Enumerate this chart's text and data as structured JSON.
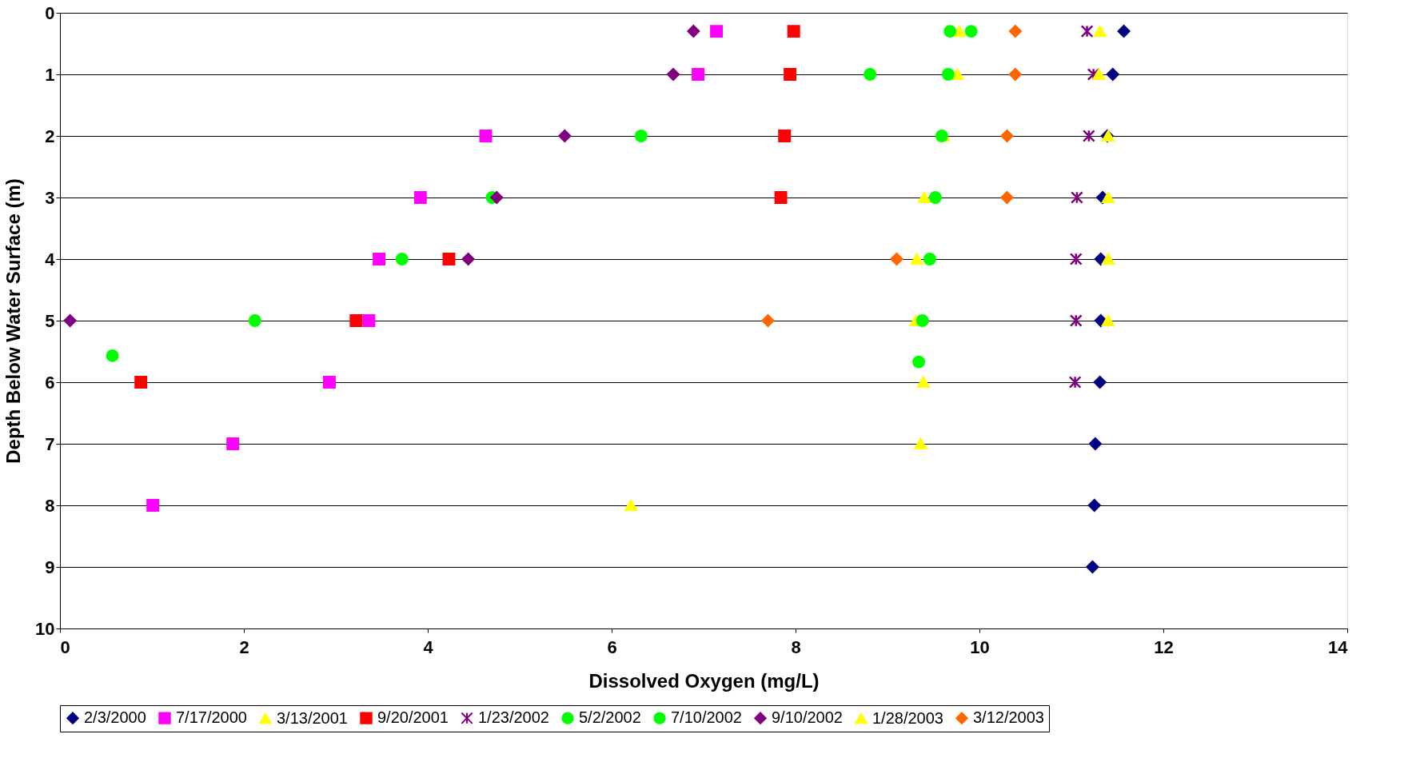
{
  "chart_data": {
    "type": "scatter",
    "xlabel": "Dissolved Oxygen (mg/L)",
    "ylabel": "Depth Below Water Surface (m)",
    "xlim": [
      0,
      14
    ],
    "xticks": [
      0,
      2,
      4,
      6,
      8,
      10,
      12,
      14
    ],
    "ylim": [
      10,
      0
    ],
    "yticks": [
      0,
      1,
      2,
      3,
      4,
      5,
      6,
      7,
      8,
      9,
      10
    ],
    "grid": "y",
    "legend": "bottom",
    "series": [
      {
        "name": "2/3/2000",
        "color": "#000080",
        "marker": "diamond",
        "x": [
          11.57,
          11.45,
          11.39,
          11.34,
          11.32,
          11.32,
          11.31,
          11.26,
          11.25,
          11.23
        ],
        "values": [
          0.3,
          1,
          2,
          3,
          4,
          5,
          6,
          7,
          8,
          9
        ]
      },
      {
        "name": "7/17/2000",
        "color": "#ff00ff",
        "marker": "square",
        "x": [
          7.14,
          6.94,
          4.63,
          3.92,
          3.47,
          3.36,
          2.93,
          1.88,
          1.01
        ],
        "values": [
          0.3,
          1,
          2,
          3,
          4,
          5,
          6,
          7,
          8
        ]
      },
      {
        "name": "3/13/2001",
        "color": "#ffff00",
        "marker": "triangle",
        "x": [
          9.78,
          9.76,
          9.61,
          9.4,
          9.32,
          9.31,
          9.39,
          9.36,
          6.21
        ],
        "values": [
          0.3,
          1,
          2,
          3,
          4,
          5,
          6,
          7,
          8
        ]
      },
      {
        "name": "9/20/2001",
        "color": "#ff0000",
        "marker": "square",
        "x": [
          7.98,
          7.94,
          7.88,
          7.84,
          4.23,
          3.22,
          0.88
        ],
        "values": [
          0.3,
          1,
          2,
          3,
          4,
          5,
          6
        ]
      },
      {
        "name": "1/23/2002",
        "color": "#800080",
        "marker": "cross",
        "x": [
          11.17,
          11.24,
          11.19,
          11.06,
          11.05,
          11.05,
          11.04
        ],
        "values": [
          0.3,
          1,
          2,
          3,
          4,
          5,
          6
        ]
      },
      {
        "name": "5/2/2002",
        "color": "#00ff00",
        "marker": "circle",
        "x": [
          9.68,
          9.66,
          9.59,
          9.52,
          9.46,
          9.38,
          9.34
        ],
        "values": [
          0.3,
          1,
          2,
          3,
          4,
          5,
          5.67
        ]
      },
      {
        "name": "7/10/2002",
        "color": "#00ff00",
        "marker": "circle",
        "x": [
          9.91,
          8.81,
          6.32,
          4.7,
          3.72,
          2.12,
          0.57
        ],
        "values": [
          0.3,
          1,
          2,
          3,
          4,
          5,
          5.57
        ]
      },
      {
        "name": "9/10/2002",
        "color": "#800080",
        "marker": "diamond",
        "x": [
          6.89,
          6.67,
          5.49,
          4.75,
          4.44,
          0.11
        ],
        "values": [
          0.3,
          1,
          2,
          3,
          4,
          5
        ]
      },
      {
        "name": "1/28/2003",
        "color": "#ffff00",
        "marker": "triangle",
        "x": [
          11.31,
          11.3,
          11.4,
          11.4,
          11.4,
          11.4
        ],
        "values": [
          0.3,
          1,
          2,
          3,
          4,
          5
        ]
      },
      {
        "name": "3/12/2003",
        "color": "#ff6600",
        "marker": "diamond",
        "x": [
          10.39,
          10.39,
          10.3,
          10.3,
          9.1,
          7.7
        ],
        "values": [
          0.3,
          1,
          2,
          3,
          4,
          5
        ]
      }
    ]
  }
}
